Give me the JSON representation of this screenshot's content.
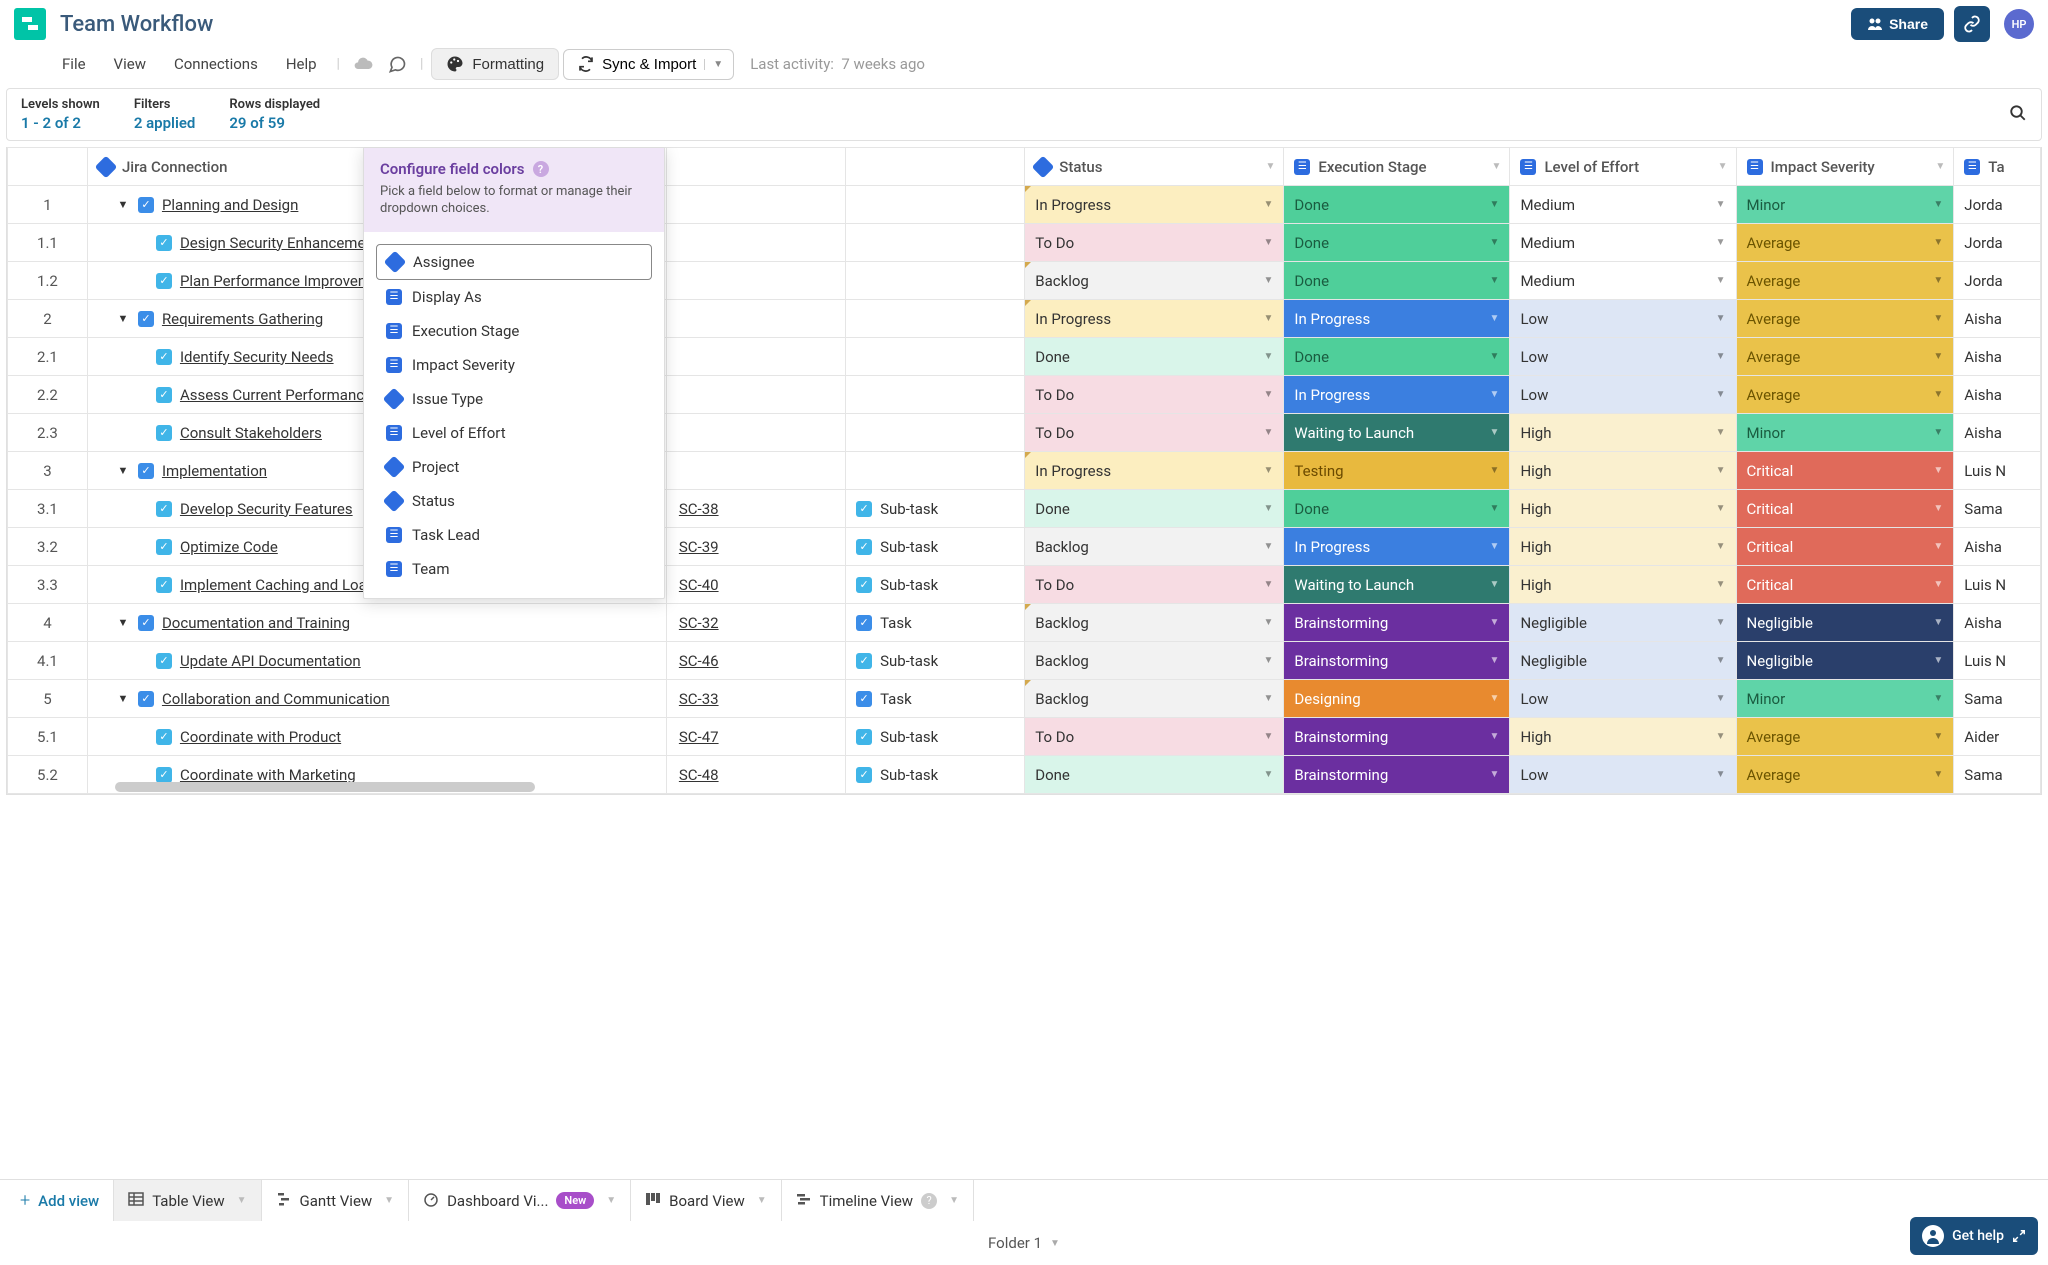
{
  "title": "Team Workflow",
  "share": "Share",
  "avatar": "HP",
  "menu": {
    "file": "File",
    "view": "View",
    "connections": "Connections",
    "help": "Help",
    "formatting": "Formatting",
    "sync": "Sync & Import"
  },
  "activity": {
    "label": "Last activity:",
    "value": "7 weeks ago"
  },
  "info": {
    "levels": {
      "label": "Levels shown",
      "value": "1 - 2 of 2"
    },
    "filters": {
      "label": "Filters",
      "value": "2 applied"
    },
    "rows": {
      "label": "Rows displayed",
      "value": "29 of 59"
    }
  },
  "popover": {
    "title": "Configure field colors",
    "desc": "Pick a field below to format or manage their dropdown choices.",
    "items": [
      {
        "label": "Assignee",
        "icon": "diamond",
        "selected": true
      },
      {
        "label": "Display As",
        "icon": "square"
      },
      {
        "label": "Execution Stage",
        "icon": "square"
      },
      {
        "label": "Impact Severity",
        "icon": "square"
      },
      {
        "label": "Issue Type",
        "icon": "diamond"
      },
      {
        "label": "Level of Effort",
        "icon": "square"
      },
      {
        "label": "Project",
        "icon": "diamond"
      },
      {
        "label": "Status",
        "icon": "diamond"
      },
      {
        "label": "Task Lead",
        "icon": "square"
      },
      {
        "label": "Team",
        "icon": "square"
      }
    ]
  },
  "columns": {
    "item": "Jira Connection",
    "status": "Status",
    "stage": "Execution Stage",
    "effort": "Level of Effort",
    "impact": "Impact Severity",
    "last": "Ta"
  },
  "colors": {
    "status": {
      "In Progress": "#fceec0",
      "To Do": "#f7dce3",
      "Backlog": "#f2f2f2",
      "Done": "#d9f5ea"
    },
    "stage": {
      "Done": "#4fcf9a",
      "In Progress": "#3b7fe0",
      "Waiting to Launch": "#2f7a6f",
      "Testing": "#e8b93e",
      "Brainstorming": "#6b2fa0",
      "Designing": "#e88a2f"
    },
    "stage_text": {
      "Done": "#1a5c40",
      "In Progress": "#ffffff",
      "Waiting to Launch": "#ffffff",
      "Testing": "#6b4a00",
      "Brainstorming": "#ffffff",
      "Designing": "#ffffff"
    },
    "effort": {
      "Medium": "#ffffff",
      "Low": "#dde6f5",
      "High": "#faf0cf",
      "Negligible": "#dde6f5"
    },
    "impact": {
      "Minor": "#5fd4a8",
      "Average": "#eac24a",
      "Critical": "#e06a5a",
      "Negligible": "#2a3f6b"
    },
    "impact_text": {
      "Minor": "#1a5c40",
      "Average": "#6b5400",
      "Critical": "#ffffff",
      "Negligible": "#ffffff"
    }
  },
  "rows": [
    {
      "num": "1",
      "level": 0,
      "expand": true,
      "icon": "task",
      "name": "Planning and Design",
      "status": "In Progress",
      "stage": "Done",
      "effort": "Medium",
      "impact": "Minor",
      "last": "Jorda",
      "corner": true
    },
    {
      "num": "1.1",
      "level": 1,
      "icon": "sub",
      "name": "Design Security Enhancements",
      "status": "To Do",
      "stage": "Done",
      "effort": "Medium",
      "impact": "Average",
      "last": "Jorda"
    },
    {
      "num": "1.2",
      "level": 1,
      "icon": "sub",
      "name": "Plan Performance Improvements",
      "status": "Backlog",
      "stage": "Done",
      "effort": "Medium",
      "impact": "Average",
      "last": "Jorda",
      "corner": true
    },
    {
      "num": "2",
      "level": 0,
      "expand": true,
      "icon": "task",
      "name": "Requirements Gathering",
      "status": "In Progress",
      "stage": "In Progress",
      "effort": "Low",
      "impact": "Average",
      "last": "Aisha",
      "corner": true
    },
    {
      "num": "2.1",
      "level": 1,
      "icon": "sub",
      "name": "Identify Security Needs",
      "status": "Done",
      "stage": "Done",
      "effort": "Low",
      "impact": "Average",
      "last": "Aisha"
    },
    {
      "num": "2.2",
      "level": 1,
      "icon": "sub",
      "name": "Assess Current Performance",
      "status": "To Do",
      "stage": "In Progress",
      "effort": "Low",
      "impact": "Average",
      "last": "Aisha"
    },
    {
      "num": "2.3",
      "level": 1,
      "icon": "sub",
      "name": "Consult Stakeholders",
      "status": "To Do",
      "stage": "Waiting to Launch",
      "effort": "High",
      "impact": "Minor",
      "last": "Aisha"
    },
    {
      "num": "3",
      "level": 0,
      "expand": true,
      "icon": "task",
      "name": "Implementation",
      "status": "In Progress",
      "stage": "Testing",
      "effort": "High",
      "impact": "Critical",
      "last": "Luis N",
      "corner": true
    },
    {
      "num": "3.1",
      "level": 1,
      "icon": "sub",
      "name": "Develop Security Features",
      "key": "SC-38",
      "type": "Sub-task",
      "status": "Done",
      "stage": "Done",
      "effort": "High",
      "impact": "Critical",
      "last": "Sama"
    },
    {
      "num": "3.2",
      "level": 1,
      "icon": "sub",
      "name": "Optimize Code",
      "key": "SC-39",
      "type": "Sub-task",
      "status": "Backlog",
      "stage": "In Progress",
      "effort": "High",
      "impact": "Critical",
      "last": "Aisha"
    },
    {
      "num": "3.3",
      "level": 1,
      "icon": "sub",
      "name": "Implement Caching and Load Balancing",
      "key": "SC-40",
      "type": "Sub-task",
      "status": "To Do",
      "stage": "Waiting to Launch",
      "effort": "High",
      "impact": "Critical",
      "last": "Luis N"
    },
    {
      "num": "4",
      "level": 0,
      "expand": true,
      "icon": "task",
      "name": "Documentation and Training",
      "key": "SC-32",
      "type": "Task",
      "status": "Backlog",
      "stage": "Brainstorming",
      "effort": "Negligible",
      "impact": "Negligible",
      "last": "Aisha",
      "corner": true
    },
    {
      "num": "4.1",
      "level": 1,
      "icon": "sub",
      "name": "Update API Documentation",
      "key": "SC-46",
      "type": "Sub-task",
      "status": "Backlog",
      "stage": "Brainstorming",
      "effort": "Negligible",
      "impact": "Negligible",
      "last": "Luis N"
    },
    {
      "num": "5",
      "level": 0,
      "expand": true,
      "icon": "task",
      "name": "Collaboration and Communication",
      "key": "SC-33",
      "type": "Task",
      "status": "Backlog",
      "stage": "Designing",
      "effort": "Low",
      "impact": "Minor",
      "last": "Sama",
      "corner": true
    },
    {
      "num": "5.1",
      "level": 1,
      "icon": "sub",
      "name": "Coordinate with Product",
      "key": "SC-47",
      "type": "Sub-task",
      "status": "To Do",
      "stage": "Brainstorming",
      "effort": "High",
      "impact": "Average",
      "last": "Aider"
    },
    {
      "num": "5.2",
      "level": 1,
      "icon": "sub",
      "name": "Coordinate with Marketing",
      "key": "SC-48",
      "type": "Sub-task",
      "status": "Done",
      "stage": "Brainstorming",
      "effort": "Low",
      "impact": "Average",
      "last": "Sama"
    }
  ],
  "tabs": {
    "add": "Add view",
    "items": [
      {
        "label": "Table View",
        "icon": "table",
        "active": true
      },
      {
        "label": "Gantt View",
        "icon": "gantt"
      },
      {
        "label": "Dashboard Vi...",
        "icon": "dash",
        "badge": "New"
      },
      {
        "label": "Board View",
        "icon": "board"
      },
      {
        "label": "Timeline View",
        "icon": "timeline",
        "help": true
      }
    ]
  },
  "folder": "Folder 1",
  "gethelp": "Get help"
}
